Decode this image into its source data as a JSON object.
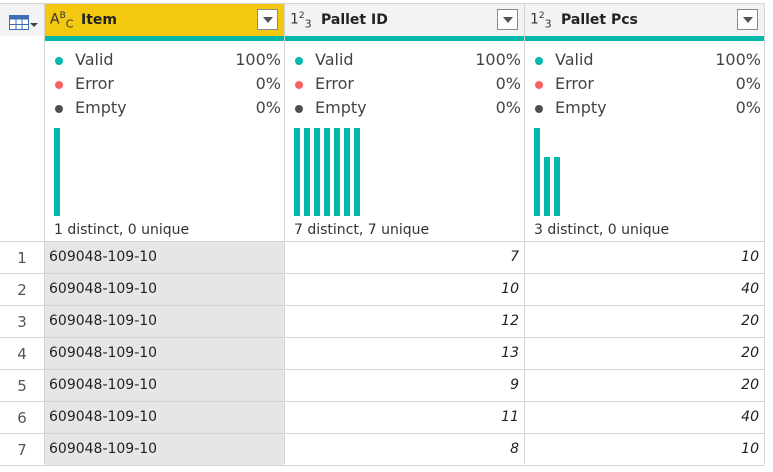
{
  "columns": [
    {
      "type_icon": "ABC",
      "type_icon_name": "text-type-icon",
      "title": "Item",
      "selected": true,
      "quality": {
        "valid": "100%",
        "error": "0%",
        "empty": "0%"
      },
      "distribution": [
        1
      ],
      "distinct_summary": "1 distinct, 0 unique"
    },
    {
      "type_icon": "123",
      "type_icon_name": "number-type-icon",
      "title": "Pallet ID",
      "selected": false,
      "quality": {
        "valid": "100%",
        "error": "0%",
        "empty": "0%"
      },
      "distribution": [
        1,
        1,
        1,
        1,
        1,
        1,
        1
      ],
      "distinct_summary": "7 distinct, 7 unique"
    },
    {
      "type_icon": "123",
      "type_icon_name": "number-type-icon",
      "title": "Pallet Pcs",
      "selected": false,
      "quality": {
        "valid": "100%",
        "error": "0%",
        "empty": "0%"
      },
      "distribution": [
        3,
        2,
        2
      ],
      "distinct_summary": "3 distinct, 0 unique"
    }
  ],
  "quality_labels": {
    "valid": "Valid",
    "error": "Error",
    "empty": "Empty"
  },
  "colors": {
    "valid": "#01b8aa",
    "error": "#fd625e",
    "empty": "#505050",
    "selected_header": "#f2c811",
    "accent_bar": "#01b8aa"
  },
  "rows": [
    {
      "num": "1",
      "item": "609048-109-10",
      "pallet_id": "7",
      "pallet_pcs": "10"
    },
    {
      "num": "2",
      "item": "609048-109-10",
      "pallet_id": "10",
      "pallet_pcs": "40"
    },
    {
      "num": "3",
      "item": "609048-109-10",
      "pallet_id": "12",
      "pallet_pcs": "20"
    },
    {
      "num": "4",
      "item": "609048-109-10",
      "pallet_id": "13",
      "pallet_pcs": "20"
    },
    {
      "num": "5",
      "item": "609048-109-10",
      "pallet_id": "9",
      "pallet_pcs": "20"
    },
    {
      "num": "6",
      "item": "609048-109-10",
      "pallet_id": "11",
      "pallet_pcs": "40"
    },
    {
      "num": "7",
      "item": "609048-109-10",
      "pallet_id": "8",
      "pallet_pcs": "10"
    }
  ]
}
